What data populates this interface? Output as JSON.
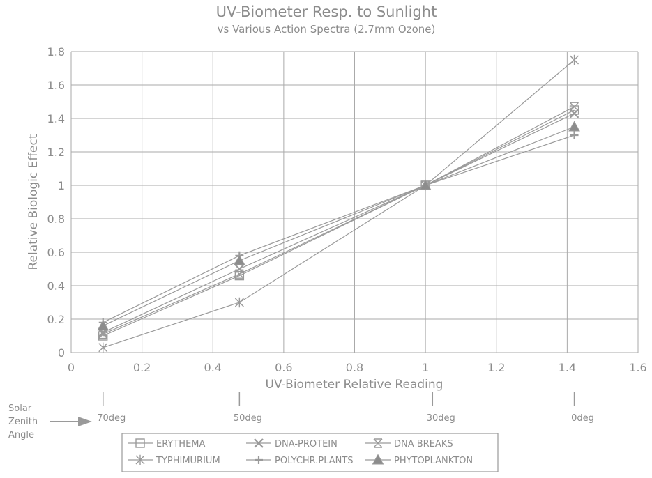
{
  "chart_data": {
    "type": "line",
    "title": "UV-Biometer Resp. to Sunlight",
    "subtitle": "vs Various Action Spectra (2.7mm Ozone)",
    "xlabel": "UV-Biometer Relative Reading",
    "ylabel": "Relative Biologic Effect",
    "xlim": [
      0,
      1.6
    ],
    "ylim": [
      0,
      1.8
    ],
    "xticks": [
      "0",
      "0.2",
      "0.4",
      "0.6",
      "0.8",
      "1",
      "1.2",
      "1.4",
      "1.6"
    ],
    "yticks": [
      "0",
      "0.2",
      "0.4",
      "0.6",
      "0.8",
      "1",
      "1.2",
      "1.4",
      "1.6",
      "1.8"
    ],
    "grid": true,
    "legend_position": "bottom",
    "x": [
      0.09,
      0.475,
      1.0,
      1.42
    ],
    "series": [
      {
        "name": "ERYTHEMA",
        "marker": "square",
        "values": [
          0.1,
          0.46,
          1.0,
          1.45
        ]
      },
      {
        "name": "DNA-PROTEIN",
        "marker": "x",
        "values": [
          0.12,
          0.5,
          1.0,
          1.43
        ]
      },
      {
        "name": "DNA BREAKS",
        "marker": "boxed-x",
        "values": [
          0.11,
          0.47,
          1.0,
          1.47
        ]
      },
      {
        "name": "TYPHIMURIUM",
        "marker": "asterisk",
        "values": [
          0.03,
          0.3,
          1.0,
          1.75
        ]
      },
      {
        "name": "POLYCHR.PLANTS",
        "marker": "plus",
        "values": [
          0.18,
          0.58,
          1.0,
          1.3
        ]
      },
      {
        "name": "PHYTOPLANKTON",
        "marker": "triangle",
        "values": [
          0.16,
          0.55,
          1.0,
          1.35
        ]
      }
    ],
    "zenith": {
      "label_lines": [
        "Solar",
        "Zenith",
        "Angle"
      ],
      "markers": [
        {
          "x": 0.09,
          "label": "70deg"
        },
        {
          "x": 0.475,
          "label": "50deg"
        },
        {
          "x": 1.02,
          "label": "30deg"
        },
        {
          "x": 1.42,
          "label": "0deg"
        }
      ]
    },
    "colors": {
      "line": "#9a9a9a",
      "grid": "#aaaaaa",
      "text": "#8c8c8c",
      "marker_fill": "#8c8c8c"
    }
  }
}
